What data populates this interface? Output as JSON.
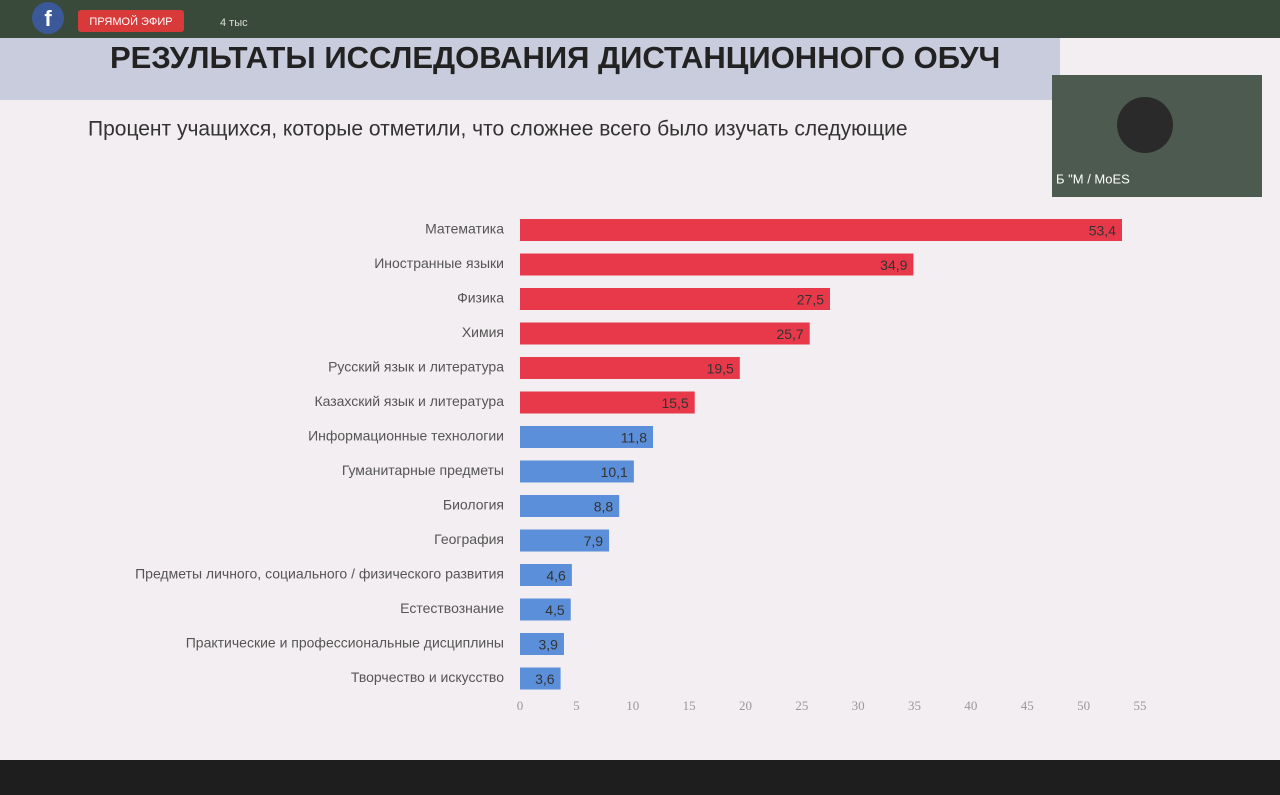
{
  "overlay": {
    "live_badge": "ПРЯМОЙ ЭФИР",
    "viewers": "4 тыс",
    "video_caption": "Б \"М / MoES"
  },
  "chart_data": {
    "type": "bar",
    "orientation": "horizontal",
    "title": "РЕЗУЛЬТАТЫ ИССЛЕДОВАНИЯ ДИСТАНЦИОННОГО ОБУЧ",
    "subtitle": "Процент учащихся, которые отметили, что сложнее всего было изучать следующие",
    "categories": [
      "Математика",
      "Иностранные языки",
      "Физика",
      "Химия",
      "Русский язык и литература",
      "Казахский язык и литература",
      "Информационные технологии",
      "Гуманитарные предметы",
      "Биология",
      "География",
      "Предметы личного, социального / физического развития",
      "Естествознание",
      "Практические и профессиональные дисциплины",
      "Творчество и искусство"
    ],
    "values": [
      53.4,
      34.9,
      27.5,
      25.7,
      19.5,
      15.5,
      11.8,
      10.1,
      8.8,
      7.9,
      4.6,
      4.5,
      3.9,
      3.6
    ],
    "value_labels": [
      "53,4",
      "34,9",
      "27,5",
      "25,7",
      "19,5",
      "15,5",
      "11,8",
      "10,1",
      "8,8",
      "7,9",
      "4,6",
      "4,5",
      "3,9",
      "3,6"
    ],
    "colors": [
      "#e8394b",
      "#e8394b",
      "#e8394b",
      "#e8394b",
      "#e8394b",
      "#e8394b",
      "#5b8fd9",
      "#5b8fd9",
      "#5b8fd9",
      "#5b8fd9",
      "#5b8fd9",
      "#5b8fd9",
      "#5b8fd9",
      "#5b8fd9"
    ],
    "xlim": [
      0,
      55
    ],
    "xticks": [
      0,
      5,
      10,
      15,
      20,
      25,
      30,
      35,
      40,
      45,
      50,
      55
    ]
  }
}
